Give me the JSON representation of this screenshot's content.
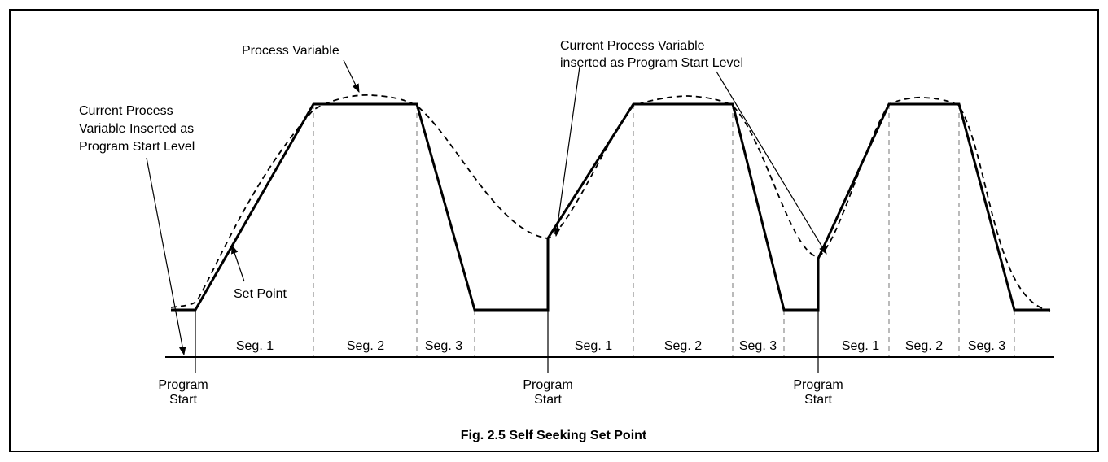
{
  "title": "Fig. 2.5 Self Seeking Set Point",
  "labels": {
    "process_variable": "Process Variable",
    "left_note": [
      "Current Process",
      "Variable Inserted as",
      "Program Start Level"
    ],
    "right_note": [
      "Current Process Variable",
      "inserted as Program Start Level"
    ],
    "set_point": "Set Point"
  },
  "segments": [
    [
      "Seg. 1",
      "Seg. 2",
      "Seg. 3"
    ],
    [
      "Seg. 1",
      "Seg. 2",
      "Seg. 3"
    ],
    [
      "Seg. 1",
      "Seg. 2",
      "Seg. 3"
    ]
  ],
  "program_starts": [
    [
      "Program",
      "Start"
    ],
    [
      "Program",
      "Start"
    ],
    [
      "Program",
      "Start"
    ]
  ]
}
